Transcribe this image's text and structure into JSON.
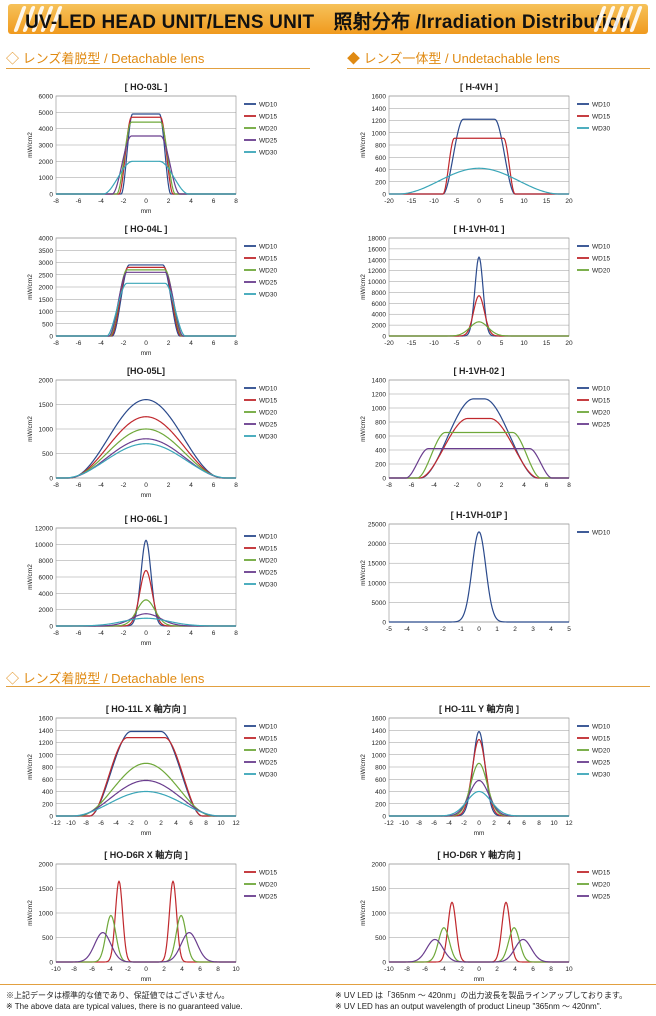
{
  "banner": {
    "title": "UV-LED HEAD UNIT/LENS UNIT　照射分布 /Irradiation Distribution"
  },
  "sections": {
    "detachable_1": "◇ レンズ着脱型 / Detachable lens",
    "undetachable": "◆ レンズ一体型 / Undetachable lens",
    "detachable_2": "◇ レンズ着脱型 / Detachable lens"
  },
  "footer": {
    "jp_left": "※上記データは標準的な値であり、保証値ではございません。",
    "en_left": "※ The above data are typical values, there is no guaranteed value.",
    "jp_right": "※ UV LED は「365nm ～ 420nm」の出力波長を製品ラインアップしております。",
    "en_right": "※ UV LED has an output wavelength of product Lineup \"365nm ～ 420nm\"."
  },
  "colors": {
    "WD10": "#2b4a8c",
    "WD15": "#c0282d",
    "WD20": "#6fa83a",
    "WD25": "#6a3d8e",
    "WD30": "#3aa6b8",
    "accent": "#e08a12"
  },
  "chart_data": [
    {
      "id": "ho03l",
      "type": "line",
      "title": "[ HO-03L ]",
      "xlabel": "mm",
      "ylabel": "mW/cm2",
      "xlim": [
        -8,
        8
      ],
      "xticks": [
        -8,
        -6,
        -4,
        -2,
        0,
        2,
        4,
        6,
        8
      ],
      "ylim": [
        0,
        6000
      ],
      "yticks": [
        0,
        1000,
        2000,
        3000,
        4000,
        5000,
        6000
      ],
      "grid": true,
      "legend": "right",
      "series": [
        {
          "name": "WD10",
          "shape": "flat",
          "peak": 4900,
          "plateau": 1.2,
          "edge": 2.2
        },
        {
          "name": "WD15",
          "shape": "flat",
          "peak": 4700,
          "plateau": 1.3,
          "edge": 2.4
        },
        {
          "name": "WD20",
          "shape": "flat",
          "peak": 4400,
          "plateau": 1.3,
          "edge": 2.6
        },
        {
          "name": "WD25",
          "shape": "flat",
          "peak": 3550,
          "plateau": 1.3,
          "edge": 3.0
        },
        {
          "name": "WD30",
          "shape": "flat",
          "peak": 2000,
          "plateau": 1.2,
          "edge": 3.8
        }
      ]
    },
    {
      "id": "ho04l",
      "type": "line",
      "title": "[ HO-04L ]",
      "xlabel": "mm",
      "ylabel": "mW/cm2",
      "xlim": [
        -8,
        8
      ],
      "xticks": [
        -8,
        -6,
        -4,
        -2,
        0,
        2,
        4,
        6,
        8
      ],
      "ylim": [
        0,
        4000
      ],
      "yticks": [
        0,
        500,
        1000,
        1500,
        2000,
        2500,
        3000,
        3500,
        4000
      ],
      "grid": true,
      "legend": "right",
      "series": [
        {
          "name": "WD10",
          "shape": "flat",
          "peak": 2900,
          "plateau": 1.5,
          "edge": 3.0
        },
        {
          "name": "WD15",
          "shape": "flat",
          "peak": 2800,
          "plateau": 1.6,
          "edge": 3.1
        },
        {
          "name": "WD20",
          "shape": "flat",
          "peak": 2700,
          "plateau": 1.7,
          "edge": 3.2
        },
        {
          "name": "WD25",
          "shape": "flat",
          "peak": 2600,
          "plateau": 1.7,
          "edge": 3.3
        },
        {
          "name": "WD30",
          "shape": "flat",
          "peak": 2150,
          "plateau": 1.7,
          "edge": 3.5
        }
      ]
    },
    {
      "id": "ho05l",
      "type": "line",
      "title": "[HO-05L]",
      "xlabel": "mm",
      "ylabel": "mW/cm2",
      "xlim": [
        -8,
        8
      ],
      "xticks": [
        -8,
        -6,
        -4,
        -2,
        0,
        2,
        4,
        6,
        8
      ],
      "ylim": [
        0,
        2000
      ],
      "yticks": [
        0,
        500,
        1000,
        1500,
        2000
      ],
      "grid": true,
      "legend": "right",
      "series": [
        {
          "name": "WD10",
          "shape": "dome",
          "peak": 1600,
          "width": 6.8
        },
        {
          "name": "WD15",
          "shape": "dome",
          "peak": 1250,
          "width": 6.9
        },
        {
          "name": "WD20",
          "shape": "dome",
          "peak": 1000,
          "width": 7.0
        },
        {
          "name": "WD25",
          "shape": "dome",
          "peak": 800,
          "width": 7.1
        },
        {
          "name": "WD30",
          "shape": "dome",
          "peak": 700,
          "width": 7.3
        }
      ]
    },
    {
      "id": "ho06l",
      "type": "line",
      "title": "[ HO-06L ]",
      "xlabel": "mm",
      "ylabel": "mW/cm2",
      "xlim": [
        -8,
        8
      ],
      "xticks": [
        -8,
        -6,
        -4,
        -2,
        0,
        2,
        4,
        6,
        8
      ],
      "ylim": [
        0,
        12000
      ],
      "yticks": [
        0,
        2000,
        4000,
        6000,
        8000,
        10000,
        12000
      ],
      "grid": true,
      "legend": "right",
      "series": [
        {
          "name": "WD10",
          "shape": "peak",
          "peak": 10500,
          "sigma": 0.45
        },
        {
          "name": "WD15",
          "shape": "peak",
          "peak": 6800,
          "sigma": 0.55
        },
        {
          "name": "WD20",
          "shape": "peak",
          "peak": 3200,
          "sigma": 0.8
        },
        {
          "name": "WD25",
          "shape": "peak",
          "peak": 1500,
          "sigma": 1.3
        },
        {
          "name": "WD30",
          "shape": "peak",
          "peak": 950,
          "sigma": 2.0
        }
      ]
    },
    {
      "id": "h4vh",
      "type": "line",
      "title": "[ H-4VH ]",
      "xlabel": "",
      "ylabel": "mW/cm2",
      "xlim": [
        -20,
        20
      ],
      "xticks": [
        -20,
        -15,
        -10,
        -5,
        0,
        5,
        10,
        15,
        20
      ],
      "ylim": [
        0,
        1600
      ],
      "yticks": [
        0,
        200,
        400,
        600,
        800,
        1000,
        1200,
        1400,
        1600
      ],
      "grid": true,
      "legend": "right",
      "series": [
        {
          "name": "WD10",
          "shape": "flat",
          "peak": 1220,
          "plateau": 3.5,
          "edge": 8.0
        },
        {
          "name": "WD15",
          "shape": "flat",
          "peak": 910,
          "plateau": 5.5,
          "edge": 8.0
        },
        {
          "name": "WD30",
          "shape": "dome",
          "peak": 420,
          "width": 18
        }
      ]
    },
    {
      "id": "h1vh01",
      "type": "line",
      "title": "[ H-1VH-01 ]",
      "xlabel": "",
      "ylabel": "mW/cm2",
      "xlim": [
        -20,
        20
      ],
      "xticks": [
        -20,
        -15,
        -10,
        -5,
        0,
        5,
        10,
        15,
        20
      ],
      "ylim": [
        0,
        18000
      ],
      "yticks": [
        0,
        2000,
        4000,
        6000,
        8000,
        10000,
        12000,
        14000,
        16000,
        18000
      ],
      "grid": true,
      "legend": "right",
      "series": [
        {
          "name": "WD10",
          "shape": "peak",
          "peak": 14500,
          "sigma": 0.9
        },
        {
          "name": "WD15",
          "shape": "peak",
          "peak": 7400,
          "sigma": 1.2
        },
        {
          "name": "WD20",
          "shape": "peak",
          "peak": 2600,
          "sigma": 2.0
        }
      ]
    },
    {
      "id": "h1vh02",
      "type": "line",
      "title": "[ H-1VH-02 ]",
      "xlabel": "",
      "ylabel": "mW/cm2",
      "xlim": [
        -8,
        8
      ],
      "xticks": [
        -8,
        -6,
        -4,
        -2,
        0,
        2,
        4,
        6,
        8
      ],
      "ylim": [
        0,
        1400
      ],
      "yticks": [
        0,
        200,
        400,
        600,
        800,
        1000,
        1200,
        1400
      ],
      "grid": true,
      "legend": "right",
      "series": [
        {
          "name": "WD10",
          "shape": "flat",
          "peak": 1130,
          "plateau": 0.5,
          "edge": 5.2
        },
        {
          "name": "WD15",
          "shape": "flat",
          "peak": 850,
          "plateau": 1.0,
          "edge": 5.3
        },
        {
          "name": "WD20",
          "shape": "flat",
          "peak": 650,
          "plateau": 3.0,
          "edge": 5.5
        },
        {
          "name": "WD25",
          "shape": "flat",
          "peak": 420,
          "plateau": 4.5,
          "edge": 6.5
        }
      ]
    },
    {
      "id": "h1vh01p",
      "type": "line",
      "title": "[ H-1VH-01P ]",
      "xlabel": "",
      "ylabel": "mW/cm2",
      "xlim": [
        -5,
        5
      ],
      "xticks": [
        -5,
        -4,
        -3,
        -2,
        -1,
        0,
        1,
        2,
        3,
        4,
        5
      ],
      "ylim": [
        0,
        25000
      ],
      "yticks": [
        0,
        5000,
        10000,
        15000,
        20000,
        25000
      ],
      "grid": true,
      "legend": "right",
      "series": [
        {
          "name": "WD10",
          "shape": "peak",
          "peak": 23000,
          "sigma": 0.38
        }
      ]
    },
    {
      "id": "ho11lx",
      "type": "line",
      "title": "[ HO-11L X 軸方向 ]",
      "xlabel": "mm",
      "ylabel": "mW/cm2",
      "xlim": [
        -12,
        12
      ],
      "xticks": [
        -12,
        -10,
        -8,
        -6,
        -4,
        -2,
        0,
        2,
        4,
        6,
        8,
        10,
        12
      ],
      "ylim": [
        0,
        1600
      ],
      "yticks": [
        0,
        200,
        400,
        600,
        800,
        1000,
        1200,
        1400,
        1600
      ],
      "grid": true,
      "legend": "right",
      "series": [
        {
          "name": "WD10",
          "shape": "flat",
          "peak": 1380,
          "plateau": 2.0,
          "edge": 7.5
        },
        {
          "name": "WD15",
          "shape": "flat",
          "peak": 1280,
          "plateau": 2.5,
          "edge": 7.5
        },
        {
          "name": "WD20",
          "shape": "dome",
          "peak": 860,
          "width": 9
        },
        {
          "name": "WD25",
          "shape": "dome",
          "peak": 580,
          "width": 9.5
        },
        {
          "name": "WD30",
          "shape": "dome",
          "peak": 400,
          "width": 10
        }
      ]
    },
    {
      "id": "ho11ly",
      "type": "line",
      "title": "[ HO-11L Y 軸方向 ]",
      "xlabel": "mm",
      "ylabel": "mW/cm2",
      "xlim": [
        -12,
        12
      ],
      "xticks": [
        -12,
        -10,
        -8,
        -6,
        -4,
        -2,
        0,
        2,
        4,
        6,
        8,
        10,
        12
      ],
      "ylim": [
        0,
        1600
      ],
      "yticks": [
        0,
        200,
        400,
        600,
        800,
        1000,
        1200,
        1400,
        1600
      ],
      "grid": true,
      "legend": "right",
      "series": [
        {
          "name": "WD10",
          "shape": "peak",
          "peak": 1380,
          "sigma": 0.8
        },
        {
          "name": "WD15",
          "shape": "peak",
          "peak": 1250,
          "sigma": 0.9
        },
        {
          "name": "WD20",
          "shape": "peak",
          "peak": 860,
          "sigma": 1.1
        },
        {
          "name": "WD25",
          "shape": "peak",
          "peak": 580,
          "sigma": 1.3
        },
        {
          "name": "WD30",
          "shape": "peak",
          "peak": 400,
          "sigma": 1.6
        }
      ]
    },
    {
      "id": "hod6rx",
      "type": "line",
      "title": "[ HO-D6R X 軸方向 ]",
      "xlabel": "mm",
      "ylabel": "mW/cm2",
      "xlim": [
        -10,
        10
      ],
      "xticks": [
        -10,
        -8,
        -6,
        -4,
        -2,
        0,
        2,
        4,
        6,
        8,
        10
      ],
      "ylim": [
        0,
        2000
      ],
      "yticks": [
        0,
        500,
        1000,
        1500,
        2000
      ],
      "grid": true,
      "legend": "right",
      "series": [
        {
          "name": "WD15",
          "shape": "twin",
          "peak": 1650,
          "center": 3.0,
          "sigma": 0.4
        },
        {
          "name": "WD20",
          "shape": "twin",
          "peak": 950,
          "center": 3.9,
          "sigma": 0.55
        },
        {
          "name": "WD25",
          "shape": "twin",
          "peak": 600,
          "center": 4.8,
          "sigma": 0.9
        }
      ]
    },
    {
      "id": "hod6ry",
      "type": "line",
      "title": "[ HO-D6R Y 軸方向 ]",
      "xlabel": "mm",
      "ylabel": "mW/cm2",
      "xlim": [
        -10,
        10
      ],
      "xticks": [
        -10,
        -8,
        -6,
        -4,
        -2,
        0,
        2,
        4,
        6,
        8,
        10
      ],
      "ylim": [
        0,
        2000
      ],
      "yticks": [
        0,
        500,
        1000,
        1500,
        2000
      ],
      "grid": true,
      "legend": "right",
      "series": [
        {
          "name": "WD15",
          "shape": "twin",
          "peak": 1220,
          "center": 3.0,
          "sigma": 0.45
        },
        {
          "name": "WD20",
          "shape": "twin",
          "peak": 700,
          "center": 3.9,
          "sigma": 0.6
        },
        {
          "name": "WD25",
          "shape": "twin",
          "peak": 460,
          "center": 4.9,
          "sigma": 0.9
        }
      ]
    }
  ]
}
